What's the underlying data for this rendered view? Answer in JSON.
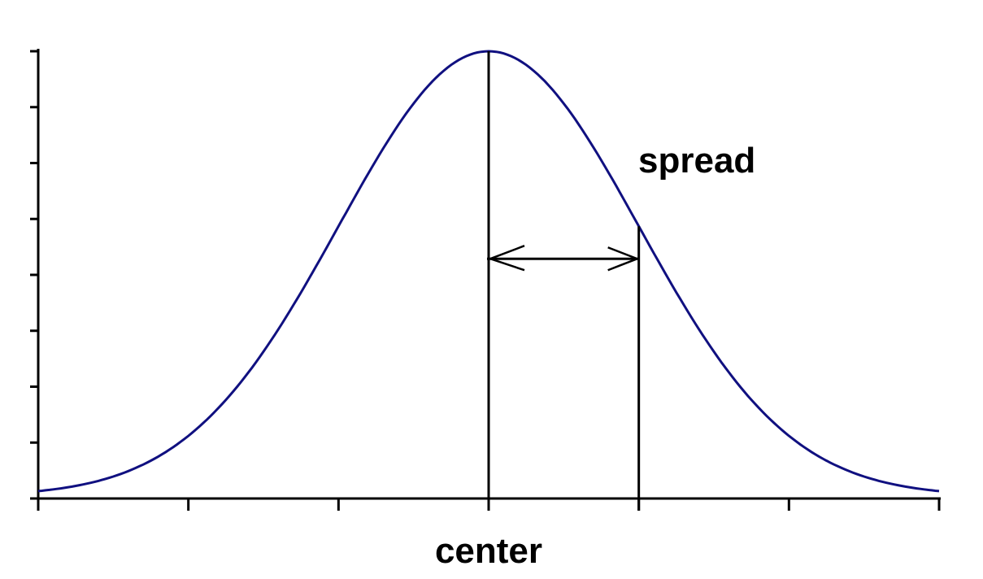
{
  "labels": {
    "center": "center",
    "spread": "spread"
  },
  "chart_data": {
    "type": "line",
    "title": "",
    "xlabel": "",
    "ylabel": "",
    "distribution": "normal",
    "mean": 0,
    "sd": 1,
    "xlim": [
      -3,
      3
    ],
    "ylim": [
      0,
      1
    ],
    "x_ticks": [
      -3,
      -2,
      -1,
      0,
      1,
      2,
      3
    ],
    "y_tick_count": 9,
    "center_x": 0,
    "spread_x": 1,
    "grid": false,
    "annotations": [
      "center",
      "spread"
    ]
  },
  "colors": {
    "curve": "#101080",
    "axes": "#000000",
    "markers": "#000000"
  }
}
